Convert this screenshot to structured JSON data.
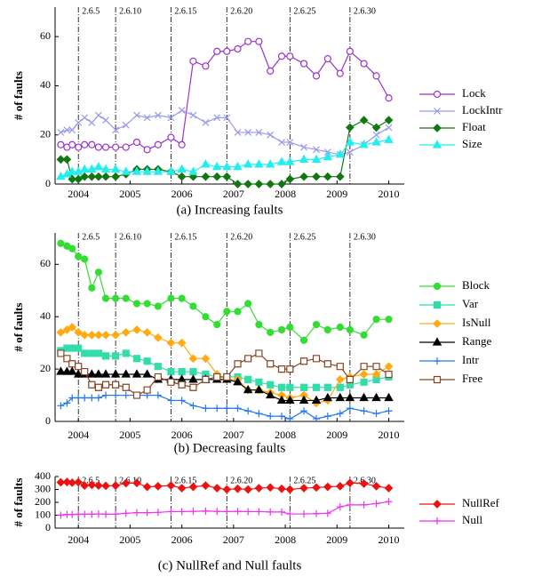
{
  "chart_data": [
    {
      "type": "line",
      "caption": "(a)  Increasing faults",
      "ylabel": "# of faults",
      "xlim": [
        2003.55,
        2010.3
      ],
      "xticks": [
        2004,
        2005,
        2006,
        2007,
        2008,
        2009,
        2010
      ],
      "ylim": [
        0,
        72
      ],
      "yticks": [
        0,
        20,
        40,
        60
      ],
      "legend": "right",
      "versions": [
        {
          "label": "2.6.5",
          "x": 2004.0
        },
        {
          "label": "2.6.10",
          "x": 2004.72
        },
        {
          "label": "2.6.15",
          "x": 2005.79
        },
        {
          "label": "2.6.20",
          "x": 2006.87
        },
        {
          "label": "2.6.25",
          "x": 2008.09
        },
        {
          "label": "2.6.30",
          "x": 2009.25
        }
      ],
      "x": [
        2003.66,
        2003.78,
        2003.88,
        2004.0,
        2004.12,
        2004.26,
        2004.39,
        2004.53,
        2004.72,
        2004.92,
        2005.13,
        2005.33,
        2005.54,
        2005.79,
        2006.0,
        2006.22,
        2006.46,
        2006.68,
        2006.87,
        2007.08,
        2007.28,
        2007.49,
        2007.71,
        2007.93,
        2008.09,
        2008.36,
        2008.6,
        2008.82,
        2009.06,
        2009.25,
        2009.52,
        2009.76,
        2010.0
      ],
      "series": [
        {
          "name": "Lock",
          "color": "#9933cc",
          "marker": "circle-open",
          "values": [
            16,
            15,
            16,
            15,
            16,
            16,
            15,
            15,
            15,
            15,
            17,
            14,
            16,
            19,
            16,
            50,
            48,
            54,
            54,
            55,
            58,
            58,
            46,
            52,
            52,
            49,
            44,
            51,
            45,
            54,
            49,
            44,
            35
          ]
        },
        {
          "name": "LockIntr",
          "color": "#9999ee",
          "marker": "x",
          "values": [
            21,
            22,
            22,
            25,
            27,
            25,
            28,
            26,
            22,
            24,
            28,
            27,
            28,
            27,
            30,
            28,
            25,
            27,
            27,
            21,
            21,
            21,
            20,
            17,
            17,
            15,
            14,
            13,
            12,
            13,
            16,
            20,
            23
          ]
        },
        {
          "name": "Float",
          "color": "#117711",
          "marker": "diamond",
          "values": [
            10,
            10,
            2,
            2,
            3,
            3,
            3,
            3,
            3,
            4,
            6,
            6,
            6,
            5,
            3,
            3,
            3,
            3,
            3,
            0,
            0,
            0,
            0,
            0,
            2,
            3,
            3,
            3,
            3,
            23,
            26,
            23,
            26
          ]
        },
        {
          "name": "Size",
          "color": "#22eeee",
          "marker": "triangle",
          "values": [
            3,
            4,
            5,
            5,
            6,
            6,
            7,
            6,
            6,
            5,
            5,
            5,
            5,
            5,
            6,
            5,
            8,
            7,
            7,
            7,
            8,
            8,
            8,
            9,
            9,
            10,
            10,
            11,
            12,
            17,
            16,
            17,
            18
          ]
        }
      ]
    },
    {
      "type": "line",
      "caption": "(b)  Decreasing faults",
      "ylabel": "# of faults",
      "xlim": [
        2003.55,
        2010.3
      ],
      "xticks": [
        2004,
        2005,
        2006,
        2007,
        2008,
        2009,
        2010
      ],
      "ylim": [
        0,
        72
      ],
      "yticks": [
        0,
        20,
        40,
        60
      ],
      "legend": "right",
      "versions": [
        {
          "label": "2.6.5",
          "x": 2004.0
        },
        {
          "label": "2.6.10",
          "x": 2004.72
        },
        {
          "label": "2.6.15",
          "x": 2005.79
        },
        {
          "label": "2.6.20",
          "x": 2006.87
        },
        {
          "label": "2.6.25",
          "x": 2008.09
        },
        {
          "label": "2.6.30",
          "x": 2009.25
        }
      ],
      "x": [
        2003.66,
        2003.78,
        2003.88,
        2004.0,
        2004.12,
        2004.26,
        2004.39,
        2004.53,
        2004.72,
        2004.92,
        2005.13,
        2005.33,
        2005.54,
        2005.79,
        2006.0,
        2006.22,
        2006.46,
        2006.68,
        2006.87,
        2007.08,
        2007.28,
        2007.49,
        2007.71,
        2007.93,
        2008.09,
        2008.36,
        2008.6,
        2008.82,
        2009.06,
        2009.25,
        2009.52,
        2009.76,
        2010.0
      ],
      "series": [
        {
          "name": "Block",
          "color": "#33dd33",
          "marker": "circle",
          "values": [
            68,
            67,
            66,
            63,
            62,
            51,
            57,
            47,
            47,
            47,
            45,
            45,
            44,
            47,
            47,
            44,
            40,
            37,
            42,
            42,
            45,
            37,
            34,
            35,
            36,
            31,
            37,
            35,
            36,
            35,
            33,
            39,
            39
          ]
        },
        {
          "name": "Var",
          "color": "#33ddaa",
          "marker": "square",
          "values": [
            27,
            28,
            28,
            28,
            26,
            26,
            26,
            25,
            25,
            26,
            24,
            23,
            21,
            19,
            19,
            19,
            18,
            17,
            17,
            17,
            16,
            15,
            14,
            13,
            13,
            13,
            13,
            13,
            13,
            14,
            15,
            16,
            17
          ]
        },
        {
          "name": "IsNull",
          "color": "#ffaa11",
          "marker": "diamond",
          "values": [
            34,
            35,
            36,
            34,
            33,
            33,
            33,
            33,
            33,
            34,
            35,
            34,
            32,
            30,
            30,
            24,
            24,
            18,
            16,
            16,
            12,
            12,
            11,
            10,
            9,
            10,
            7,
            8,
            16,
            17,
            18,
            18,
            21
          ]
        },
        {
          "name": "Range",
          "color": "#000000",
          "marker": "triangle",
          "values": [
            19,
            19,
            19,
            18,
            18,
            18,
            18,
            18,
            18,
            18,
            18,
            18,
            16,
            16,
            16,
            16,
            16,
            16,
            16,
            15,
            12,
            12,
            10,
            8,
            8,
            8,
            8,
            9,
            9,
            9,
            9,
            9,
            9
          ]
        },
        {
          "name": "Intr",
          "color": "#2277ee",
          "marker": "plus",
          "values": [
            6,
            7,
            9,
            9,
            9,
            9,
            9,
            10,
            10,
            10,
            10,
            10,
            10,
            8,
            8,
            6,
            5,
            5,
            5,
            5,
            4,
            3,
            2,
            2,
            1,
            4,
            1,
            2,
            3,
            5,
            4,
            3,
            4
          ]
        },
        {
          "name": "Free",
          "color": "#884422",
          "marker": "square-open",
          "values": [
            26,
            24,
            22,
            21,
            19,
            14,
            13,
            14,
            14,
            13,
            10,
            12,
            17,
            15,
            14,
            13,
            16,
            17,
            17,
            22,
            24,
            26,
            22,
            20,
            20,
            23,
            24,
            22,
            21,
            16,
            21,
            21,
            18
          ]
        }
      ]
    },
    {
      "type": "line",
      "caption": "(c)  NullRef and Null faults",
      "ylabel": "# of faults",
      "xlim": [
        2003.55,
        2010.3
      ],
      "xticks": [
        2004,
        2005,
        2006,
        2007,
        2008,
        2009,
        2010
      ],
      "ylim": [
        0,
        400
      ],
      "yticks": [
        0,
        100,
        200,
        300,
        400
      ],
      "legend": "right",
      "versions": [
        {
          "label": "2.6.5",
          "x": 2004.0
        },
        {
          "label": "2.6.10",
          "x": 2004.72
        },
        {
          "label": "2.6.15",
          "x": 2005.79
        },
        {
          "label": "2.6.20",
          "x": 2006.87
        },
        {
          "label": "2.6.25",
          "x": 2008.09
        },
        {
          "label": "2.6.30",
          "x": 2009.25
        }
      ],
      "x": [
        2003.66,
        2003.78,
        2003.88,
        2004.0,
        2004.12,
        2004.26,
        2004.39,
        2004.53,
        2004.72,
        2004.92,
        2005.13,
        2005.33,
        2005.54,
        2005.79,
        2006.0,
        2006.22,
        2006.46,
        2006.68,
        2006.87,
        2007.08,
        2007.28,
        2007.49,
        2007.71,
        2007.93,
        2008.09,
        2008.36,
        2008.6,
        2008.82,
        2009.06,
        2009.25,
        2009.52,
        2009.76,
        2010.0
      ],
      "series": [
        {
          "name": "NullRef",
          "color": "#ee1111",
          "marker": "diamond",
          "values": [
            355,
            358,
            352,
            356,
            330,
            335,
            330,
            328,
            330,
            348,
            350,
            320,
            325,
            330,
            310,
            320,
            330,
            310,
            300,
            305,
            300,
            310,
            315,
            305,
            300,
            310,
            315,
            320,
            325,
            350,
            345,
            325,
            310
          ]
        },
        {
          "name": "Null",
          "color": "#ee33ee",
          "marker": "plus",
          "values": [
            100,
            105,
            105,
            108,
            108,
            108,
            110,
            108,
            108,
            115,
            120,
            120,
            122,
            128,
            128,
            130,
            132,
            130,
            128,
            130,
            128,
            128,
            125,
            125,
            110,
            110,
            112,
            115,
            165,
            180,
            180,
            190,
            205
          ]
        }
      ]
    }
  ]
}
